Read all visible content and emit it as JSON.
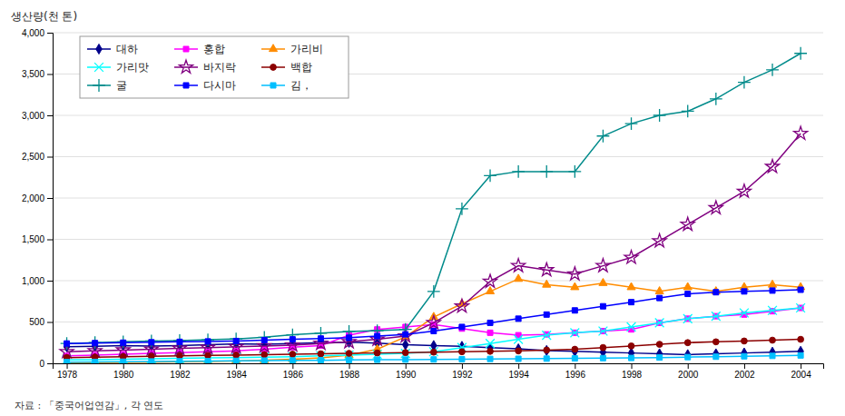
{
  "chart_data": {
    "type": "line",
    "ylabel": "생산량(천 톤)",
    "annotations": [
      "자료 :  「중국어업연감」, 각 연도"
    ],
    "x": [
      1978,
      1979,
      1980,
      1981,
      1982,
      1983,
      1984,
      1985,
      1986,
      1987,
      1988,
      1989,
      1990,
      1991,
      1992,
      1993,
      1994,
      1995,
      1996,
      1997,
      1998,
      1999,
      2000,
      2001,
      2002,
      2003,
      2004
    ],
    "series": [
      {
        "name": "대하",
        "color": "#00008B",
        "marker": "diamond",
        "values": [
          200,
          205,
          215,
          210,
          215,
          225,
          235,
          230,
          240,
          250,
          255,
          245,
          225,
          215,
          205,
          190,
          175,
          155,
          145,
          135,
          125,
          115,
          105,
          115,
          125,
          135,
          145
        ]
      },
      {
        "name": "홍합",
        "color": "#FF00FF",
        "marker": "square",
        "values": [
          90,
          100,
          110,
          120,
          130,
          140,
          150,
          170,
          195,
          215,
          340,
          410,
          440,
          470,
          420,
          370,
          340,
          350,
          370,
          390,
          410,
          490,
          540,
          570,
          590,
          630,
          670
        ]
      },
      {
        "name": "가리비",
        "color": "#FF8C00",
        "marker": "triangle",
        "values": [
          5,
          8,
          12,
          15,
          18,
          22,
          28,
          38,
          50,
          65,
          100,
          170,
          320,
          560,
          720,
          870,
          1020,
          950,
          920,
          970,
          920,
          870,
          920,
          870,
          920,
          950,
          920
        ]
      },
      {
        "name": "가리맛",
        "color": "#00FFFF",
        "marker": "x",
        "values": [
          40,
          45,
          50,
          55,
          60,
          65,
          70,
          75,
          80,
          90,
          100,
          110,
          120,
          140,
          190,
          240,
          290,
          340,
          370,
          390,
          440,
          490,
          540,
          570,
          610,
          640,
          670
        ]
      },
      {
        "name": "바지락",
        "color": "#800080",
        "marker": "star",
        "values": [
          140,
          150,
          160,
          170,
          180,
          190,
          200,
          210,
          220,
          240,
          260,
          290,
          330,
          490,
          690,
          990,
          1180,
          1130,
          1080,
          1180,
          1280,
          1480,
          1680,
          1880,
          2080,
          2380,
          2780
        ]
      },
      {
        "name": "백합",
        "color": "#8B0000",
        "marker": "circle",
        "values": [
          70,
          75,
          80,
          85,
          90,
          95,
          100,
          105,
          110,
          115,
          120,
          125,
          130,
          135,
          140,
          145,
          150,
          160,
          170,
          190,
          210,
          230,
          250,
          260,
          270,
          280,
          290
        ]
      },
      {
        "name": "굴",
        "color": "#008B8B",
        "marker": "plus",
        "values": [
          240,
          250,
          260,
          270,
          275,
          285,
          295,
          315,
          345,
          365,
          385,
          395,
          410,
          870,
          1870,
          2270,
          2320,
          2320,
          2320,
          2750,
          2900,
          3000,
          3050,
          3200,
          3400,
          3550,
          3750
        ]
      },
      {
        "name": "다시마",
        "color": "#0000FF",
        "marker": "square",
        "values": [
          240,
          245,
          250,
          255,
          260,
          265,
          270,
          280,
          290,
          300,
          310,
          330,
          350,
          390,
          440,
          490,
          540,
          590,
          640,
          690,
          740,
          790,
          840,
          860,
          870,
          880,
          890
        ]
      },
      {
        "name": "김，",
        "color": "#00BFFF",
        "marker": "square",
        "values": [
          15,
          17,
          20,
          23,
          25,
          27,
          30,
          33,
          35,
          37,
          40,
          43,
          45,
          47,
          50,
          53,
          55,
          57,
          60,
          63,
          65,
          70,
          75,
          80,
          85,
          90,
          95
        ]
      }
    ],
    "ylim": [
      0,
      4000
    ],
    "yticks": [
      0,
      500,
      {
        "value": 1000,
        "label": "1,000"
      },
      {
        "value": 1500,
        "label": "1,500"
      },
      {
        "value": 2000,
        "label": "2,000"
      },
      {
        "value": 2500,
        "label": "2,500"
      },
      {
        "value": 3000,
        "label": "3,000"
      },
      {
        "value": 3500,
        "label": "3,500"
      },
      {
        "value": 4000,
        "label": "4,000"
      }
    ],
    "xlim": [
      1977.5,
      2004.8
    ],
    "xticks": [
      1978,
      1980,
      1982,
      1984,
      1986,
      1988,
      1990,
      1992,
      1994,
      1996,
      1998,
      2000,
      2002,
      2004
    ],
    "grid": true,
    "legend": "upper left"
  }
}
